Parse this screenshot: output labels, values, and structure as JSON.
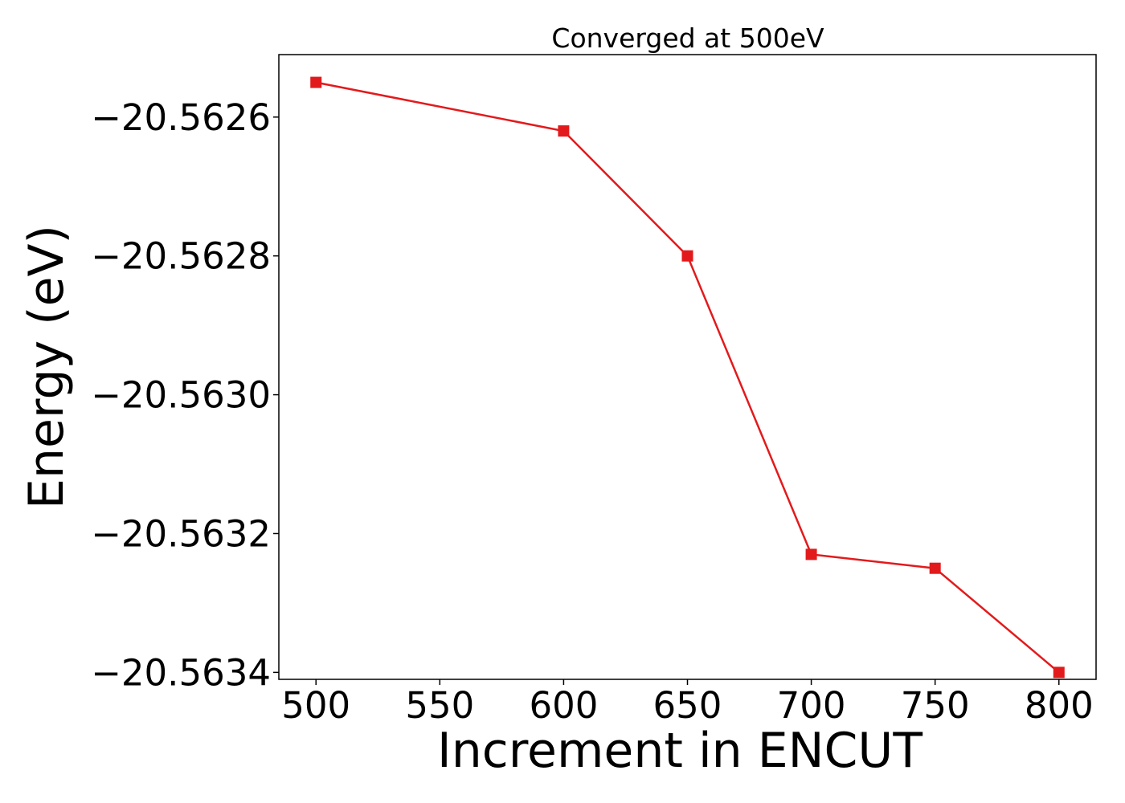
{
  "chart_data": {
    "type": "line",
    "title": "Converged at 500eV",
    "xlabel": "Increment in ENCUT",
    "ylabel": "Energy (eV)",
    "x": [
      500,
      600,
      650,
      700,
      750,
      800
    ],
    "series": [
      {
        "values": [
          -20.56255,
          -20.56262,
          -20.5628,
          -20.56323,
          -20.56325,
          -20.5634
        ],
        "color": "#e31a1c",
        "marker": "square"
      }
    ],
    "xlim": [
      485,
      815
    ],
    "ylim": [
      -20.56341,
      -20.56251
    ],
    "xticks": [
      500,
      550,
      600,
      650,
      700,
      750,
      800
    ],
    "xtick_labels": [
      "500",
      "550",
      "600",
      "650",
      "700",
      "750",
      "800"
    ],
    "yticks": [
      -20.5626,
      -20.5628,
      -20.563,
      -20.5632,
      -20.5634
    ],
    "ytick_labels": [
      "−20.5626",
      "−20.5628",
      "−20.5630",
      "−20.5632",
      "−20.5634"
    ],
    "grid": false,
    "legend": "none"
  }
}
